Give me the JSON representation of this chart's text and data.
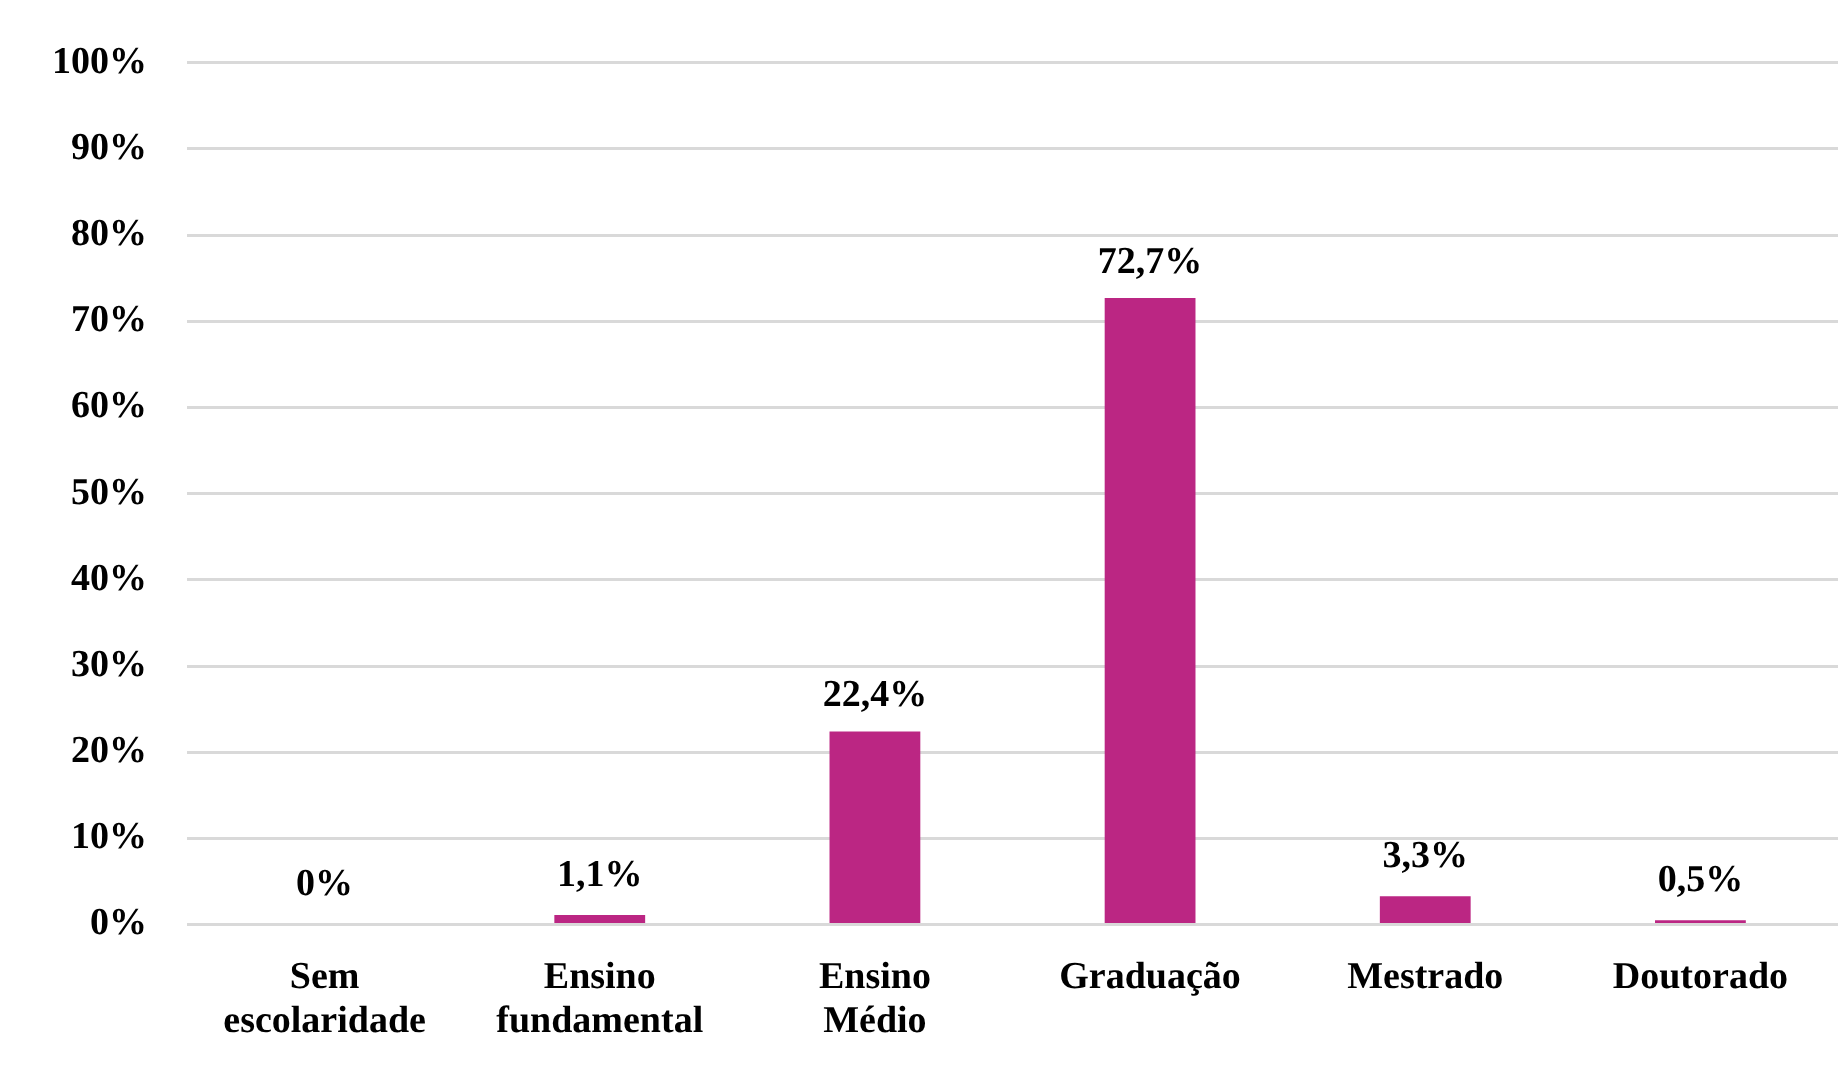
{
  "chart_data": {
    "type": "bar",
    "categories": [
      "Sem escolaridade",
      "Ensino fundamental",
      "Ensino Médio",
      "Graduação",
      "Mestrado",
      "Doutorado"
    ],
    "values": [
      0,
      1.1,
      22.4,
      72.7,
      3.3,
      0.5
    ],
    "value_labels": [
      "0%",
      "1,1%",
      "22,4%",
      "72,7%",
      "3,3%",
      "0,5%"
    ],
    "color": "#bb2683",
    "ylim": [
      0,
      100
    ],
    "yticks": [
      {
        "value": 0,
        "label": "0%"
      },
      {
        "value": 10,
        "label": "10%"
      },
      {
        "value": 20,
        "label": "20%"
      },
      {
        "value": 30,
        "label": "30%"
      },
      {
        "value": 40,
        "label": "40%"
      },
      {
        "value": 50,
        "label": "50%"
      },
      {
        "value": 60,
        "label": "60%"
      },
      {
        "value": 70,
        "label": "70%"
      },
      {
        "value": 80,
        "label": "80%"
      },
      {
        "value": 90,
        "label": "90%"
      },
      {
        "value": 100,
        "label": "100%"
      }
    ],
    "grid": "y"
  }
}
